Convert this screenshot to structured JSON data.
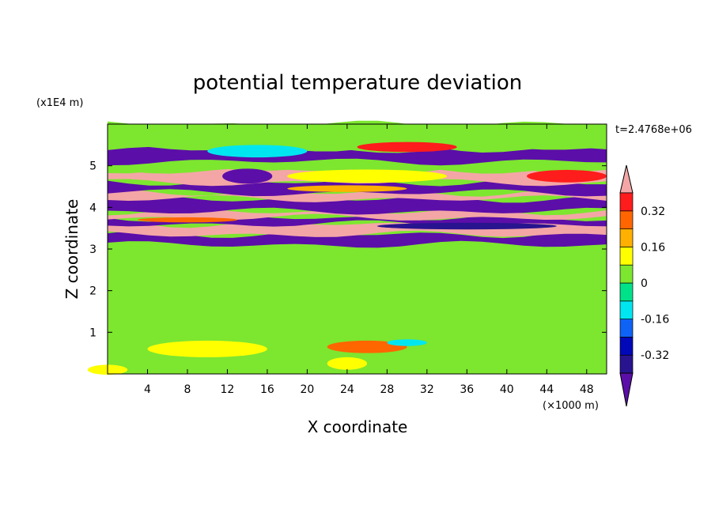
{
  "chart_data": {
    "type": "heatmap",
    "title": "potential temperature deviation",
    "xlabel": "X coordinate",
    "ylabel": "Z coordinate",
    "x_unit_label": "(×1000 m)",
    "y_unit_label": "(x1E4 m)",
    "time_label": "t=2.4768e+06",
    "xlim": [
      0,
      50
    ],
    "ylim": [
      0,
      6
    ],
    "x_ticks": [
      "4",
      "8",
      "12",
      "16",
      "20",
      "24",
      "28",
      "32",
      "36",
      "40",
      "44",
      "48"
    ],
    "x_tick_values": [
      4,
      8,
      12,
      16,
      20,
      24,
      28,
      32,
      36,
      40,
      44,
      48
    ],
    "y_ticks": [
      "1",
      "2",
      "3",
      "4",
      "5"
    ],
    "y_tick_values": [
      1,
      2,
      3,
      4,
      5
    ],
    "colorbar": {
      "tick_labels": [
        "0.32",
        "0.16",
        "0",
        "-0.16",
        "-0.32"
      ],
      "tick_values": [
        0.32,
        0.16,
        0,
        -0.16,
        -0.32
      ],
      "levels": [
        -0.4,
        -0.32,
        -0.24,
        -0.16,
        -0.08,
        0,
        0.08,
        0.16,
        0.24,
        0.32,
        0.4
      ],
      "colors": [
        "#5b0ea8",
        "#29148f",
        "#0008b8",
        "#0e63f5",
        "#00e6f0",
        "#00e28a",
        "#7de62f",
        "#ffff00",
        "#ffb000",
        "#ff6600",
        "#ff1c1c",
        "#f4a6a6"
      ],
      "extend": "both"
    },
    "layers": [
      {
        "z_range": [
          0,
          0.15
        ],
        "level": "green/yellow mixed near surface"
      },
      {
        "z_range": [
          0.15,
          3.1
        ],
        "value": 0.03
      },
      {
        "z_range": [
          3.1,
          3.35
        ],
        "value": -0.42
      },
      {
        "z_range": [
          3.35,
          3.6
        ],
        "value": 0.42
      },
      {
        "z_range": [
          3.6,
          3.75
        ],
        "value": -0.42
      },
      {
        "z_range": [
          3.75,
          3.9
        ],
        "value": 0.42
      },
      {
        "z_range": [
          3.9,
          4.2
        ],
        "value": -0.42
      },
      {
        "z_range": [
          4.2,
          4.35
        ],
        "value": 0.42
      },
      {
        "z_range": [
          4.35,
          4.6
        ],
        "value": -0.42
      },
      {
        "z_range": [
          4.6,
          4.9
        ],
        "value": 0.42
      },
      {
        "z_range": [
          4.9,
          5.1
        ],
        "value": 0.06
      },
      {
        "z_range": [
          5.1,
          5.4
        ],
        "value": -0.42
      },
      {
        "z_range": [
          5.4,
          6.0
        ],
        "value": 0.04
      }
    ]
  }
}
